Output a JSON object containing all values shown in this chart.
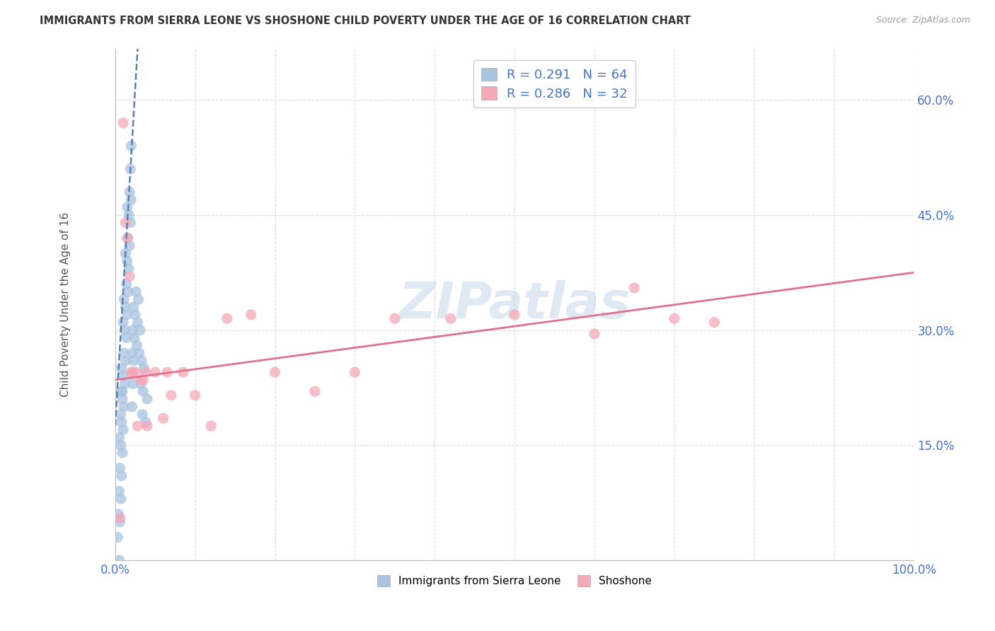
{
  "title": "IMMIGRANTS FROM SIERRA LEONE VS SHOSHONE CHILD POVERTY UNDER THE AGE OF 16 CORRELATION CHART",
  "source": "Source: ZipAtlas.com",
  "ylabel": "Child Poverty Under the Age of 16",
  "xlim": [
    0.0,
    1.0
  ],
  "ylim": [
    0.0,
    0.667
  ],
  "xticks": [
    0.0,
    0.1,
    0.2,
    0.3,
    0.4,
    0.5,
    0.6,
    0.7,
    0.8,
    0.9,
    1.0
  ],
  "xticklabels_show": {
    "0.0": "0.0%",
    "1.0": "100.0%"
  },
  "yticks": [
    0.0,
    0.15,
    0.3,
    0.45,
    0.6
  ],
  "yticklabels": [
    "",
    "15.0%",
    "30.0%",
    "45.0%",
    "60.0%"
  ],
  "legend1_label": "Immigrants from Sierra Leone",
  "legend2_label": "Shoshone",
  "r1": 0.291,
  "n1": 64,
  "r2": 0.286,
  "n2": 32,
  "color1": "#a8c4e0",
  "color2": "#f4a8b8",
  "trendline1_color": "#5580b0",
  "trendline2_color": "#e07090",
  "background_color": "#ffffff",
  "grid_color": "#d8d8e8",
  "title_color": "#333333",
  "axis_label_color": "#4472c4",
  "tick_color": "#4472c4",
  "watermark": "ZIPatlas",
  "sl_x": [
    0.003,
    0.004,
    0.005,
    0.005,
    0.006,
    0.006,
    0.007,
    0.007,
    0.007,
    0.008,
    0.008,
    0.008,
    0.009,
    0.009,
    0.01,
    0.01,
    0.01,
    0.011,
    0.011,
    0.011,
    0.012,
    0.012,
    0.013,
    0.013,
    0.013,
    0.014,
    0.014,
    0.015,
    0.015,
    0.015,
    0.016,
    0.016,
    0.017,
    0.017,
    0.018,
    0.018,
    0.019,
    0.019,
    0.02,
    0.02,
    0.021,
    0.021,
    0.022,
    0.022,
    0.023,
    0.023,
    0.024,
    0.025,
    0.026,
    0.027,
    0.028,
    0.029,
    0.03,
    0.031,
    0.032,
    0.033,
    0.034,
    0.035,
    0.036,
    0.038,
    0.04,
    0.005,
    0.007,
    0.009
  ],
  "sl_y": [
    0.03,
    0.06,
    0.0,
    0.09,
    0.05,
    0.12,
    0.08,
    0.15,
    0.22,
    0.11,
    0.18,
    0.25,
    0.14,
    0.21,
    0.17,
    0.24,
    0.31,
    0.2,
    0.27,
    0.34,
    0.23,
    0.3,
    0.26,
    0.33,
    0.4,
    0.29,
    0.36,
    0.32,
    0.39,
    0.46,
    0.35,
    0.42,
    0.38,
    0.45,
    0.41,
    0.48,
    0.44,
    0.51,
    0.47,
    0.54,
    0.2,
    0.27,
    0.23,
    0.3,
    0.26,
    0.33,
    0.29,
    0.32,
    0.35,
    0.28,
    0.31,
    0.34,
    0.27,
    0.3,
    0.23,
    0.26,
    0.19,
    0.22,
    0.25,
    0.18,
    0.21,
    0.16,
    0.19,
    0.22
  ],
  "sh_x": [
    0.006,
    0.01,
    0.013,
    0.015,
    0.018,
    0.02,
    0.022,
    0.025,
    0.028,
    0.032,
    0.035,
    0.038,
    0.04,
    0.05,
    0.06,
    0.065,
    0.07,
    0.085,
    0.1,
    0.12,
    0.14,
    0.17,
    0.2,
    0.25,
    0.3,
    0.35,
    0.42,
    0.5,
    0.6,
    0.65,
    0.7,
    0.75
  ],
  "sh_y": [
    0.055,
    0.57,
    0.44,
    0.42,
    0.37,
    0.245,
    0.245,
    0.245,
    0.175,
    0.235,
    0.235,
    0.245,
    0.175,
    0.245,
    0.185,
    0.245,
    0.215,
    0.245,
    0.215,
    0.175,
    0.315,
    0.32,
    0.245,
    0.22,
    0.245,
    0.315,
    0.315,
    0.32,
    0.295,
    0.355,
    0.315,
    0.31
  ],
  "trend1_x0": 0.0,
  "trend1_y0": 0.175,
  "trend1_x1": 0.028,
  "trend1_y1": 0.667,
  "trend2_x0": 0.0,
  "trend2_y0": 0.235,
  "trend2_x1": 1.0,
  "trend2_y1": 0.375
}
